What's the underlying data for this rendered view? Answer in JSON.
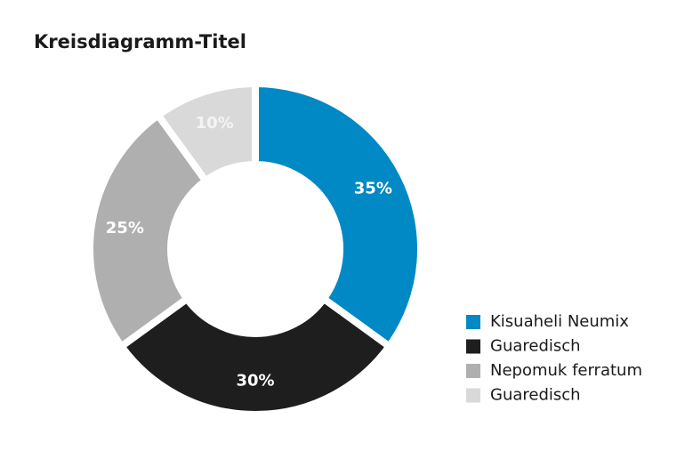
{
  "chart_data": {
    "type": "donut",
    "title": "Kreisdiagramm-Titel",
    "categories": [
      "Kisuaheli Neumix",
      "Guaredisch",
      "Nepomuk ferratum",
      "Guaredisch"
    ],
    "values": [
      35,
      30,
      25,
      10
    ],
    "value_labels": [
      "35%",
      "30%",
      "25%",
      "10%"
    ],
    "colors": [
      "#0089c4",
      "#1e1e1e",
      "#afafaf",
      "#d9d9d9"
    ],
    "label_colors": [
      "#ffffff",
      "#ffffff",
      "#ffffff",
      "#f4f4f4"
    ],
    "legend": "bottom-right"
  }
}
